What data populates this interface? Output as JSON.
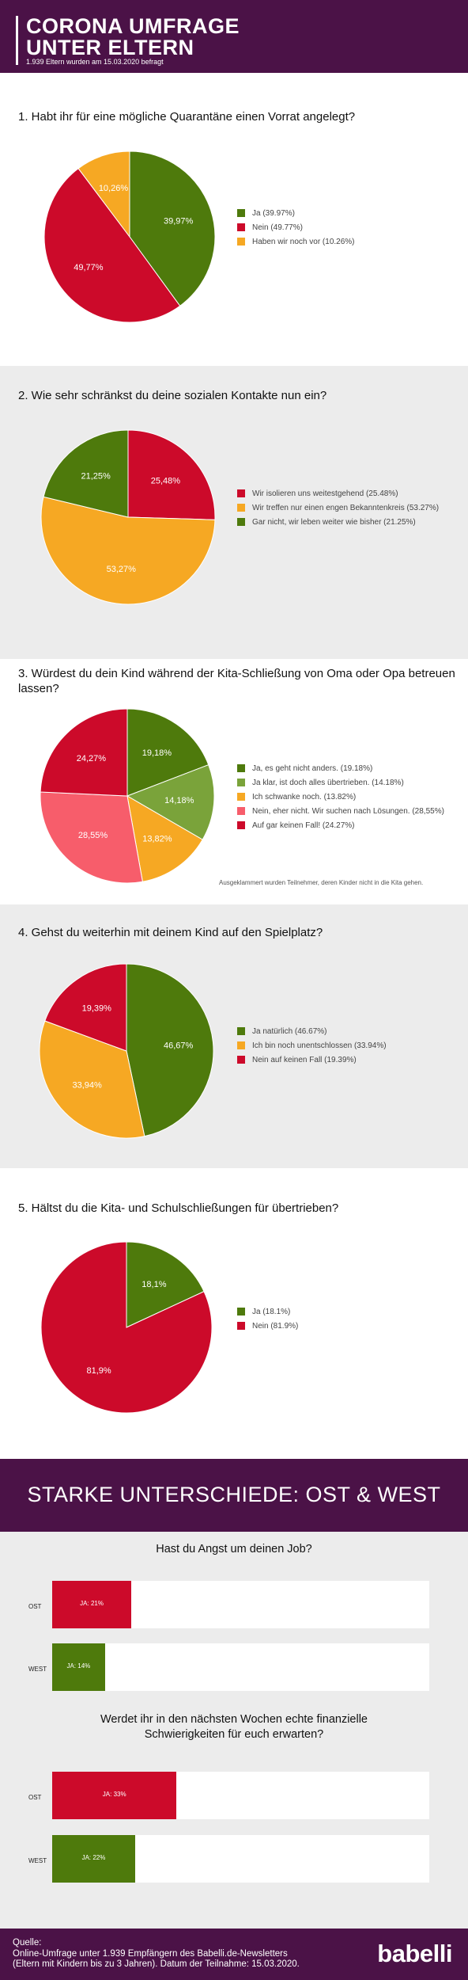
{
  "header": {
    "title_line1": "CORONA UMFRAGE",
    "title_line2": "UNTER ELTERN",
    "subtitle": "1.939 Eltern wurden am 15.03.2020 befragt"
  },
  "colors": {
    "green": "#4e7a0c",
    "red": "#cc0a2a",
    "orange": "#f6a823",
    "light_green": "#7aa33a",
    "pink": "#f75d6b",
    "purple": "#4b1247",
    "gray_bg": "#ececec"
  },
  "chart_data": [
    {
      "type": "pie",
      "title": "1. Habt ihr für eine mögliche Quarantäne einen Vorrat angelegt?",
      "slices": [
        {
          "label": "Ja (39.97%)",
          "value": 39.97,
          "display": "39,97%",
          "color": "#4e7a0c"
        },
        {
          "label": "Nein (49.77%)",
          "value": 49.77,
          "display": "49,77%",
          "color": "#cc0a2a"
        },
        {
          "label": "Haben wir noch vor (10.26%)",
          "value": 10.26,
          "display": "10,26%",
          "color": "#f6a823"
        }
      ]
    },
    {
      "type": "pie",
      "title": "2. Wie sehr schränkst du deine sozialen Kontakte nun ein?",
      "slices": [
        {
          "label": "Wir isolieren uns weitestgehend (25.48%)",
          "value": 25.48,
          "display": "25,48%",
          "color": "#cc0a2a"
        },
        {
          "label": "Wir treffen nur einen engen Bekanntenkreis (53.27%)",
          "value": 53.27,
          "display": "53,27%",
          "color": "#f6a823"
        },
        {
          "label": "Gar nicht, wir leben weiter wie bisher (21.25%)",
          "value": 21.25,
          "display": "21,25%",
          "color": "#4e7a0c"
        }
      ]
    },
    {
      "type": "pie",
      "title": "3. Würdest du dein Kind während der Kita-Schließung von Oma oder Opa betreuen lassen?",
      "note": "Ausgeklammert wurden Teilnehmer, deren Kinder nicht in die Kita gehen.",
      "slices": [
        {
          "label": "Ja, es geht nicht anders. (19.18%)",
          "value": 19.18,
          "display": "19,18%",
          "color": "#4e7a0c"
        },
        {
          "label": "Ja klar, ist doch alles übertrieben. (14.18%)",
          "value": 14.18,
          "display": "14,18%",
          "color": "#7aa33a"
        },
        {
          "label": "Ich schwanke noch. (13.82%)",
          "value": 13.82,
          "display": "13,82%",
          "color": "#f6a823"
        },
        {
          "label": "Nein, eher nicht. Wir suchen nach Lösungen. (28,55%)",
          "value": 28.55,
          "display": "28,55%",
          "color": "#f75d6b"
        },
        {
          "label": "Auf gar keinen Fall! (24.27%)",
          "value": 24.27,
          "display": "24,27%",
          "color": "#cc0a2a"
        }
      ]
    },
    {
      "type": "pie",
      "title": "4. Gehst du weiterhin mit deinem Kind auf den Spielplatz?",
      "slices": [
        {
          "label": "Ja natürlich (46.67%)",
          "value": 46.67,
          "display": "46,67%",
          "color": "#4e7a0c"
        },
        {
          "label": "Ich bin noch unentschlossen (33.94%)",
          "value": 33.94,
          "display": "33,94%",
          "color": "#f6a823"
        },
        {
          "label": "Nein auf keinen Fall (19.39%)",
          "value": 19.39,
          "display": "19,39%",
          "color": "#cc0a2a"
        }
      ]
    },
    {
      "type": "pie",
      "title": "5. Hältst du die Kita- und Schulschließungen für übertrieben?",
      "slices": [
        {
          "label": "Ja (18.1%)",
          "value": 18.1,
          "display": "18,1%",
          "color": "#4e7a0c"
        },
        {
          "label": "Nein (81.9%)",
          "value": 81.9,
          "display": "81,9%",
          "color": "#cc0a2a"
        }
      ]
    },
    {
      "type": "bar",
      "title": "Hast du Angst um deinen Job?",
      "categories": [
        "OST",
        "WEST"
      ],
      "values": [
        21,
        14
      ],
      "bar_labels": [
        "JA: 21%",
        "JA: 14%"
      ],
      "colors": [
        "#cc0a2a",
        "#4e7a0c"
      ],
      "xlim": [
        0,
        100
      ]
    },
    {
      "type": "bar",
      "title": "Werdet ihr in den nächsten Wochen echte finanzielle Schwierigkeiten für euch erwarten?",
      "categories": [
        "OST",
        "WEST"
      ],
      "values": [
        33,
        22
      ],
      "bar_labels": [
        "JA: 33%",
        "JA: 22%"
      ],
      "colors": [
        "#cc0a2a",
        "#4e7a0c"
      ],
      "xlim": [
        0,
        100
      ]
    }
  ],
  "band": {
    "title": "STARKE UNTERSCHIEDE: OST & WEST"
  },
  "footer": {
    "source_label": "Quelle:",
    "source_line1": "Online-Umfrage unter 1.939 Empfängern des Babelli.de-Newsletters",
    "source_line2": "(Eltern mit Kindern bis zu 3 Jahren). Datum der Teilnahme: 15.03.2020.",
    "logo": "babelli"
  }
}
